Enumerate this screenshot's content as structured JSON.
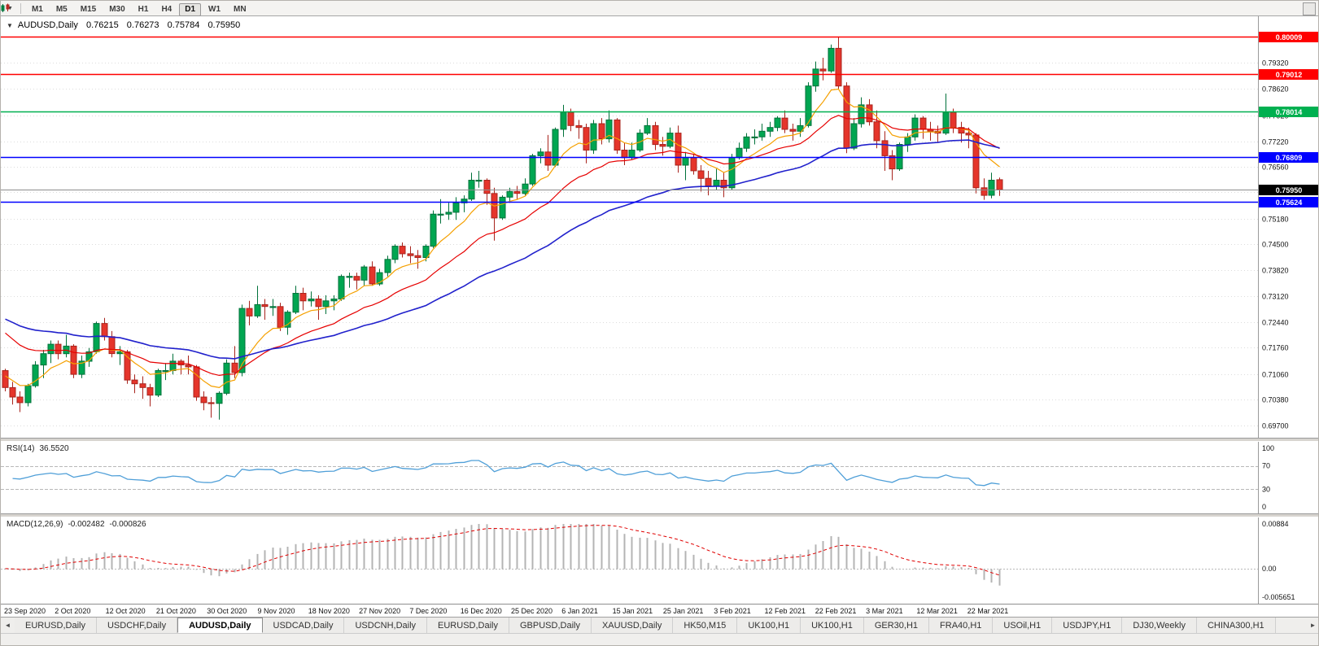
{
  "toolbar": {
    "timeframes": [
      "M1",
      "M5",
      "M15",
      "M30",
      "H1",
      "H4",
      "D1",
      "W1",
      "MN"
    ],
    "active_timeframe": "D1"
  },
  "chart": {
    "title": "AUDUSD,Daily",
    "ohlc": {
      "open": "0.76215",
      "high": "0.76273",
      "low": "0.75784",
      "close": "0.75950"
    }
  },
  "price_axis": {
    "gridlines": [
      0.7932,
      0.7862,
      0.7792,
      0.7722,
      0.7656,
      0.7588,
      0.7518,
      0.745,
      0.7382,
      0.7312,
      0.7244,
      0.7176,
      0.7106,
      0.7038,
      0.697
    ]
  },
  "levels": [
    {
      "value": 0.80009,
      "label": "0.80009",
      "color": "#ff0000",
      "kind": "resistance-line"
    },
    {
      "value": 0.79012,
      "label": "0.79012",
      "color": "#ff0000",
      "kind": "resistance-line"
    },
    {
      "value": 0.78014,
      "label": "0.78014",
      "color": "#00b050",
      "kind": "support-line"
    },
    {
      "value": 0.76809,
      "label": "0.76809",
      "color": "#0000ff",
      "kind": "support-line"
    },
    {
      "value": 0.75624,
      "label": "0.75624",
      "color": "#0000ff",
      "kind": "support-line"
    }
  ],
  "current_price": {
    "value": 0.7595,
    "label": "0.75950",
    "badge_color": "#000000",
    "line_color": "#8c8c8c"
  },
  "indicators": {
    "rsi": {
      "name": "RSI(14)",
      "value": "36.5520",
      "axis": [
        {
          "label": "100",
          "value": 100
        },
        {
          "label": "70",
          "value": 70
        },
        {
          "label": "30",
          "value": 30
        },
        {
          "label": "0",
          "value": 0
        }
      ],
      "dashed_levels": [
        70,
        30
      ],
      "line_color": "#4f9fd8"
    },
    "macd": {
      "name": "MACD(12,26,9)",
      "value": "-0.002482",
      "signal_value": "-0.000826",
      "axis": [
        {
          "label": "0.00884",
          "value": 0.00884
        },
        {
          "label": "0.00",
          "value": 0
        },
        {
          "label": "-0.005651",
          "value": -0.005651
        }
      ],
      "histogram_color": "#b4b4b4",
      "signal_color": "#e00000"
    }
  },
  "time_axis": [
    "23 Sep 2020",
    "2 Oct 2020",
    "12 Oct 2020",
    "21 Oct 2020",
    "30 Oct 2020",
    "9 Nov 2020",
    "18 Nov 2020",
    "27 Nov 2020",
    "7 Dec 2020",
    "16 Dec 2020",
    "25 Dec 2020",
    "6 Jan 2021",
    "15 Jan 2021",
    "25 Jan 2021",
    "3 Feb 2021",
    "12 Feb 2021",
    "22 Feb 2021",
    "3 Mar 2021",
    "12 Mar 2021",
    "22 Mar 2021"
  ],
  "tabs": {
    "items": [
      "EURUSD,Daily",
      "USDCHF,Daily",
      "AUDUSD,Daily",
      "USDCAD,Daily",
      "USDCNH,Daily",
      "EURUSD,Daily",
      "GBPUSD,Daily",
      "XAUUSD,Daily",
      "HK50,M15",
      "UK100,H1",
      "UK100,H1",
      "GER30,H1",
      "FRA40,H1",
      "USOil,H1",
      "USDJPY,H1",
      "DJ30,Weekly",
      "CHINA300,H1"
    ],
    "active_index": 2
  },
  "chart_data": {
    "type": "candlestick",
    "symbol": "AUDUSD",
    "timeframe": "Daily",
    "price_range": {
      "min": 0.6937,
      "max": 0.8055
    },
    "candle_colors": {
      "up_fill": "#00a651",
      "up_stroke": "#00713a",
      "down_fill": "#e5352b",
      "down_stroke": "#a8241d"
    },
    "moving_averages": [
      {
        "name": "fast",
        "type": "ema",
        "period": 8,
        "seed": 0.711,
        "color": "#f5a000",
        "width": 1.2
      },
      {
        "name": "medium",
        "type": "ema",
        "period": 20,
        "seed": 0.723,
        "color": "#e60000",
        "width": 1.2
      },
      {
        "name": "slow",
        "type": "ema",
        "period": 45,
        "seed": 0.726,
        "color": "#2121cc",
        "width": 1.6
      }
    ],
    "rsi": {
      "period": 14,
      "display_range": [
        0,
        100
      ]
    },
    "macd": {
      "fast": 12,
      "slow": 26,
      "signal": 9,
      "display_range": [
        -0.005651,
        0.00884
      ]
    },
    "candles": [
      [
        0.7115,
        0.712,
        0.706,
        0.707
      ],
      [
        0.707,
        0.7085,
        0.7025,
        0.7045
      ],
      [
        0.7045,
        0.706,
        0.7005,
        0.703
      ],
      [
        0.703,
        0.708,
        0.702,
        0.7075
      ],
      [
        0.7075,
        0.714,
        0.707,
        0.713
      ],
      [
        0.713,
        0.717,
        0.7095,
        0.716
      ],
      [
        0.716,
        0.7195,
        0.7135,
        0.7185
      ],
      [
        0.7185,
        0.7195,
        0.7145,
        0.716
      ],
      [
        0.716,
        0.721,
        0.715,
        0.718
      ],
      [
        0.718,
        0.7185,
        0.7095,
        0.7105
      ],
      [
        0.7105,
        0.7155,
        0.7095,
        0.714
      ],
      [
        0.714,
        0.7175,
        0.7125,
        0.7165
      ],
      [
        0.7165,
        0.7245,
        0.716,
        0.724
      ],
      [
        0.724,
        0.7255,
        0.7195,
        0.7205
      ],
      [
        0.7205,
        0.722,
        0.715,
        0.716
      ],
      [
        0.716,
        0.718,
        0.713,
        0.7165
      ],
      [
        0.7165,
        0.717,
        0.708,
        0.709
      ],
      [
        0.709,
        0.7105,
        0.7055,
        0.708
      ],
      [
        0.708,
        0.71,
        0.704,
        0.707
      ],
      [
        0.707,
        0.708,
        0.702,
        0.705
      ],
      [
        0.705,
        0.712,
        0.7045,
        0.7115
      ],
      [
        0.7115,
        0.7135,
        0.709,
        0.7115
      ],
      [
        0.7115,
        0.716,
        0.7105,
        0.714
      ],
      [
        0.714,
        0.7145,
        0.7105,
        0.713
      ],
      [
        0.713,
        0.7155,
        0.7105,
        0.7125
      ],
      [
        0.7125,
        0.713,
        0.7035,
        0.7045
      ],
      [
        0.7045,
        0.706,
        0.701,
        0.703
      ],
      [
        0.703,
        0.7045,
        0.699,
        0.7028
      ],
      [
        0.7028,
        0.706,
        0.6985,
        0.7055
      ],
      [
        0.7055,
        0.7145,
        0.705,
        0.7135
      ],
      [
        0.7135,
        0.718,
        0.7095,
        0.711
      ],
      [
        0.711,
        0.729,
        0.71,
        0.728
      ],
      [
        0.728,
        0.73,
        0.7235,
        0.726
      ],
      [
        0.726,
        0.734,
        0.7255,
        0.729
      ],
      [
        0.729,
        0.7305,
        0.725,
        0.7285
      ],
      [
        0.7285,
        0.7305,
        0.726,
        0.7285
      ],
      [
        0.7285,
        0.7295,
        0.722,
        0.723
      ],
      [
        0.723,
        0.7275,
        0.721,
        0.727
      ],
      [
        0.727,
        0.734,
        0.7265,
        0.732
      ],
      [
        0.732,
        0.7335,
        0.7275,
        0.73
      ],
      [
        0.73,
        0.7325,
        0.7285,
        0.7305
      ],
      [
        0.7305,
        0.7315,
        0.725,
        0.7285
      ],
      [
        0.7285,
        0.7315,
        0.7265,
        0.73
      ],
      [
        0.73,
        0.7315,
        0.7275,
        0.7305
      ],
      [
        0.7305,
        0.737,
        0.73,
        0.7365
      ],
      [
        0.7365,
        0.7375,
        0.7335,
        0.7365
      ],
      [
        0.7365,
        0.7375,
        0.733,
        0.7355
      ],
      [
        0.7355,
        0.7395,
        0.734,
        0.739
      ],
      [
        0.739,
        0.7405,
        0.734,
        0.7345
      ],
      [
        0.7345,
        0.7385,
        0.734,
        0.7375
      ],
      [
        0.7375,
        0.742,
        0.7365,
        0.741
      ],
      [
        0.741,
        0.745,
        0.74,
        0.7445
      ],
      [
        0.7445,
        0.7455,
        0.7415,
        0.7425
      ],
      [
        0.7425,
        0.7445,
        0.74,
        0.742
      ],
      [
        0.742,
        0.7435,
        0.7385,
        0.7415
      ],
      [
        0.7415,
        0.745,
        0.7405,
        0.7445
      ],
      [
        0.7445,
        0.754,
        0.744,
        0.753
      ],
      [
        0.753,
        0.757,
        0.7505,
        0.753
      ],
      [
        0.753,
        0.756,
        0.7515,
        0.7535
      ],
      [
        0.7535,
        0.7575,
        0.7515,
        0.756
      ],
      [
        0.756,
        0.758,
        0.7535,
        0.757
      ],
      [
        0.757,
        0.764,
        0.7565,
        0.762
      ],
      [
        0.762,
        0.7645,
        0.76,
        0.762
      ],
      [
        0.762,
        0.7625,
        0.7555,
        0.7585
      ],
      [
        0.7585,
        0.76,
        0.746,
        0.752
      ],
      [
        0.752,
        0.758,
        0.7515,
        0.7575
      ],
      [
        0.7575,
        0.76,
        0.756,
        0.759
      ],
      [
        0.759,
        0.7605,
        0.757,
        0.7585
      ],
      [
        0.7585,
        0.7625,
        0.758,
        0.761
      ],
      [
        0.761,
        0.769,
        0.7605,
        0.7685
      ],
      [
        0.7685,
        0.7705,
        0.7665,
        0.7695
      ],
      [
        0.7695,
        0.774,
        0.7645,
        0.766
      ],
      [
        0.766,
        0.776,
        0.7655,
        0.7755
      ],
      [
        0.7755,
        0.782,
        0.7735,
        0.78
      ],
      [
        0.78,
        0.781,
        0.775,
        0.7765
      ],
      [
        0.7765,
        0.778,
        0.773,
        0.776
      ],
      [
        0.776,
        0.777,
        0.7665,
        0.77
      ],
      [
        0.77,
        0.778,
        0.769,
        0.777
      ],
      [
        0.777,
        0.7785,
        0.7715,
        0.773
      ],
      [
        0.773,
        0.7805,
        0.772,
        0.778
      ],
      [
        0.778,
        0.7785,
        0.769,
        0.77
      ],
      [
        0.77,
        0.772,
        0.766,
        0.768
      ],
      [
        0.768,
        0.772,
        0.7675,
        0.77
      ],
      [
        0.77,
        0.7755,
        0.7695,
        0.7745
      ],
      [
        0.7745,
        0.7785,
        0.774,
        0.7765
      ],
      [
        0.7765,
        0.7775,
        0.77,
        0.7715
      ],
      [
        0.7715,
        0.7735,
        0.7685,
        0.771
      ],
      [
        0.771,
        0.776,
        0.7705,
        0.7745
      ],
      [
        0.7745,
        0.7765,
        0.764,
        0.766
      ],
      [
        0.766,
        0.7695,
        0.762,
        0.768
      ],
      [
        0.768,
        0.769,
        0.7635,
        0.7645
      ],
      [
        0.7645,
        0.766,
        0.759,
        0.7625
      ],
      [
        0.7625,
        0.7645,
        0.758,
        0.7605
      ],
      [
        0.7605,
        0.765,
        0.7595,
        0.762
      ],
      [
        0.762,
        0.764,
        0.7575,
        0.76
      ],
      [
        0.76,
        0.769,
        0.7595,
        0.768
      ],
      [
        0.768,
        0.772,
        0.7675,
        0.7705
      ],
      [
        0.7705,
        0.7745,
        0.7695,
        0.7735
      ],
      [
        0.7735,
        0.7755,
        0.7715,
        0.7735
      ],
      [
        0.7735,
        0.777,
        0.7725,
        0.775
      ],
      [
        0.775,
        0.7775,
        0.7735,
        0.776
      ],
      [
        0.776,
        0.779,
        0.775,
        0.7785
      ],
      [
        0.7785,
        0.7805,
        0.7745,
        0.7755
      ],
      [
        0.7755,
        0.777,
        0.7725,
        0.775
      ],
      [
        0.775,
        0.7785,
        0.7735,
        0.7765
      ],
      [
        0.7765,
        0.788,
        0.776,
        0.787
      ],
      [
        0.787,
        0.7935,
        0.7855,
        0.7915
      ],
      [
        0.7915,
        0.7945,
        0.7885,
        0.791
      ],
      [
        0.791,
        0.798,
        0.7905,
        0.797
      ],
      [
        0.797,
        0.8001,
        0.786,
        0.787
      ],
      [
        0.787,
        0.788,
        0.7692,
        0.7705
      ],
      [
        0.7705,
        0.7785,
        0.77,
        0.777
      ],
      [
        0.777,
        0.784,
        0.776,
        0.782
      ],
      [
        0.782,
        0.7835,
        0.7765,
        0.7775
      ],
      [
        0.7775,
        0.7805,
        0.7705,
        0.7725
      ],
      [
        0.7725,
        0.775,
        0.7645,
        0.7685
      ],
      [
        0.7685,
        0.77,
        0.762,
        0.765
      ],
      [
        0.765,
        0.772,
        0.7645,
        0.7715
      ],
      [
        0.7715,
        0.7745,
        0.7695,
        0.7735
      ],
      [
        0.7735,
        0.7795,
        0.7725,
        0.7785
      ],
      [
        0.7785,
        0.779,
        0.773,
        0.7755
      ],
      [
        0.7755,
        0.7775,
        0.7725,
        0.775
      ],
      [
        0.775,
        0.7765,
        0.772,
        0.7745
      ],
      [
        0.7745,
        0.785,
        0.774,
        0.78
      ],
      [
        0.78,
        0.781,
        0.7745,
        0.776
      ],
      [
        0.776,
        0.7775,
        0.772,
        0.7745
      ],
      [
        0.7745,
        0.776,
        0.7705,
        0.774
      ],
      [
        0.774,
        0.7745,
        0.7585,
        0.76
      ],
      [
        0.76,
        0.7625,
        0.7568,
        0.758
      ],
      [
        0.758,
        0.764,
        0.7572,
        0.762
      ],
      [
        0.76215,
        0.76273,
        0.75784,
        0.7595
      ]
    ]
  }
}
